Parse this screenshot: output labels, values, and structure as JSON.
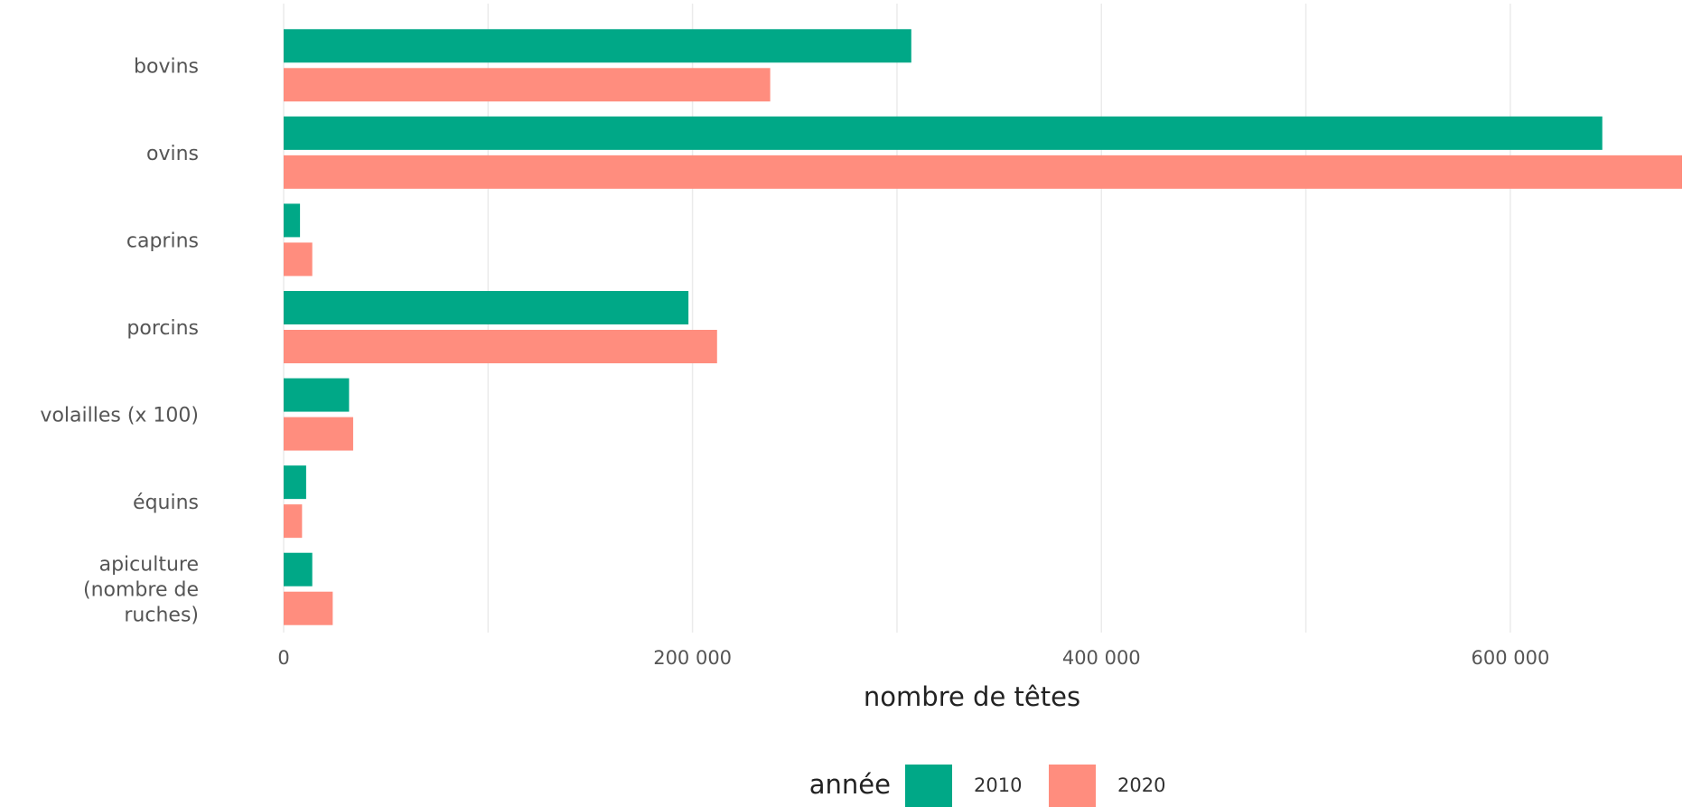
{
  "chart_data": {
    "type": "bar",
    "orientation": "horizontal",
    "categories": [
      "bovins",
      "ovins",
      "caprins",
      "porcins",
      "volailles (x 100)",
      "équins",
      "apiculture (nombre de ruches)"
    ],
    "category_label_lines": [
      [
        "bovins"
      ],
      [
        "ovins"
      ],
      [
        "caprins"
      ],
      [
        "porcins"
      ],
      [
        "volailles (x 100)"
      ],
      [
        "équins"
      ],
      [
        "apiculture",
        "(nombre de",
        "ruches)"
      ]
    ],
    "series": [
      {
        "name": "2010",
        "color": "#00A887",
        "values": [
          307000,
          645000,
          8000,
          198000,
          32000,
          11000,
          14000
        ]
      },
      {
        "name": "2020",
        "color": "#FF8D7E",
        "values": [
          238000,
          684000,
          14000,
          212000,
          34000,
          9000,
          24000
        ]
      }
    ],
    "xlabel": "nombre de têtes",
    "ylabel": "",
    "xlim": [
      0,
      684000
    ],
    "x_ticks": [
      0,
      200000,
      400000,
      600000
    ],
    "x_tick_labels": [
      "0",
      "200 000",
      "400 000",
      "600 000"
    ],
    "grid": true,
    "legend": {
      "title": "année",
      "position": "bottom",
      "entries": [
        "2010",
        "2020"
      ]
    }
  }
}
